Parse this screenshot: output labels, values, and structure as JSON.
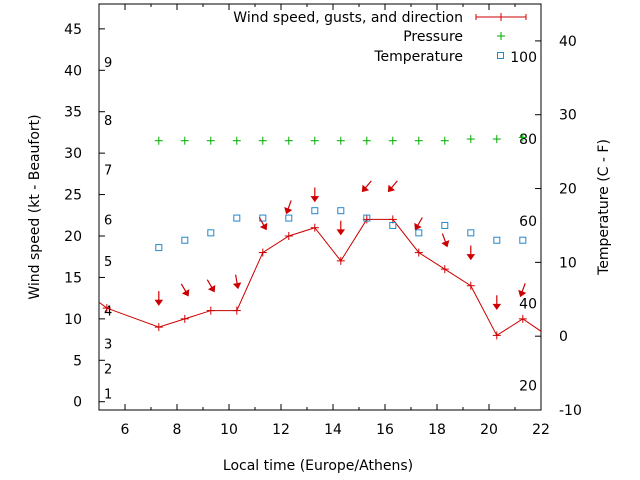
{
  "chart_data": {
    "type": "line",
    "xlabel": "Local time (Europe/Athens)",
    "ylabel_left": "Wind speed (kt - Beaufort)",
    "ylabel_right": "Temperature (C - F)",
    "xlim": [
      5,
      22
    ],
    "ylim_left": [
      -1,
      48
    ],
    "ylim_right": [
      -10,
      45
    ],
    "x_ticks": [
      6,
      8,
      10,
      12,
      14,
      16,
      18,
      20,
      22
    ],
    "y_left_ticks": [
      0,
      5,
      10,
      15,
      20,
      25,
      30,
      35,
      40,
      45
    ],
    "y_right_ticks": [
      -10,
      0,
      10,
      20,
      30,
      40
    ],
    "beaufort_labels": [
      {
        "label": "1",
        "kt": 1
      },
      {
        "label": "2",
        "kt": 4
      },
      {
        "label": "3",
        "kt": 7
      },
      {
        "label": "4",
        "kt": 11
      },
      {
        "label": "5",
        "kt": 17
      },
      {
        "label": "6",
        "kt": 22
      },
      {
        "label": "7",
        "kt": 28
      },
      {
        "label": "8",
        "kt": 34
      },
      {
        "label": "9",
        "kt": 41
      }
    ],
    "fahrenheit_labels": [
      {
        "label": "20",
        "celsius": -6.7
      },
      {
        "label": "40",
        "celsius": 4.4
      },
      {
        "label": "60",
        "celsius": 15.6
      },
      {
        "label": "80",
        "celsius": 26.7
      },
      {
        "label": "100",
        "celsius": 37.8
      }
    ],
    "legend_placement": "top-right",
    "series": [
      {
        "name": "Wind speed, gusts, and direction",
        "color": "#cc0000",
        "style": "line-with-plus-markers",
        "x": [
          5,
          5.3,
          7.3,
          8.3,
          9.3,
          10.3,
          11.3,
          12.3,
          13.3,
          14.3,
          15.3,
          16.3,
          17.3,
          18.3,
          19.3,
          20.3,
          21.3,
          22
        ],
        "values": [
          12,
          11.3,
          9,
          10,
          11,
          11,
          18,
          20,
          21,
          17,
          22,
          22,
          18,
          16,
          14,
          8,
          10,
          8.5
        ]
      },
      {
        "name": "Pressure",
        "color": "#00aa00",
        "style": "plus-markers",
        "x": [
          7.3,
          8.3,
          9.3,
          10.3,
          11.3,
          12.3,
          13.3,
          14.3,
          15.3,
          16.3,
          17.3,
          18.3,
          19.3,
          20.3,
          21.3
        ],
        "values": [
          31.5,
          31.5,
          31.5,
          31.5,
          31.5,
          31.5,
          31.5,
          31.5,
          31.5,
          31.5,
          31.5,
          31.5,
          31.7,
          31.7,
          31.9
        ]
      },
      {
        "name": "Temperature",
        "color": "#2288cc",
        "style": "open-square-markers",
        "axis": "right",
        "x": [
          7.3,
          8.3,
          9.3,
          10.3,
          11.3,
          12.3,
          13.3,
          14.3,
          15.3,
          16.3,
          17.3,
          18.3,
          19.3,
          20.3,
          21.3
        ],
        "values": [
          12,
          13,
          14,
          16,
          16,
          16,
          17,
          17,
          16,
          15,
          14,
          15,
          14,
          13,
          13
        ]
      }
    ],
    "wind_direction_arrows": {
      "color": "#cc0000",
      "x": [
        7.3,
        8.3,
        9.3,
        10.3,
        11.3,
        12.3,
        13.3,
        14.3,
        15.3,
        16.3,
        17.3,
        18.3,
        19.3,
        20.3,
        21.3
      ],
      "kt": [
        12.5,
        13.5,
        14,
        14.5,
        21.5,
        23.5,
        25,
        21,
        26,
        26,
        21.5,
        19.5,
        18,
        12,
        13.5
      ],
      "direction_deg": [
        0,
        330,
        330,
        350,
        330,
        20,
        0,
        0,
        40,
        40,
        30,
        340,
        0,
        0,
        20
      ]
    }
  }
}
